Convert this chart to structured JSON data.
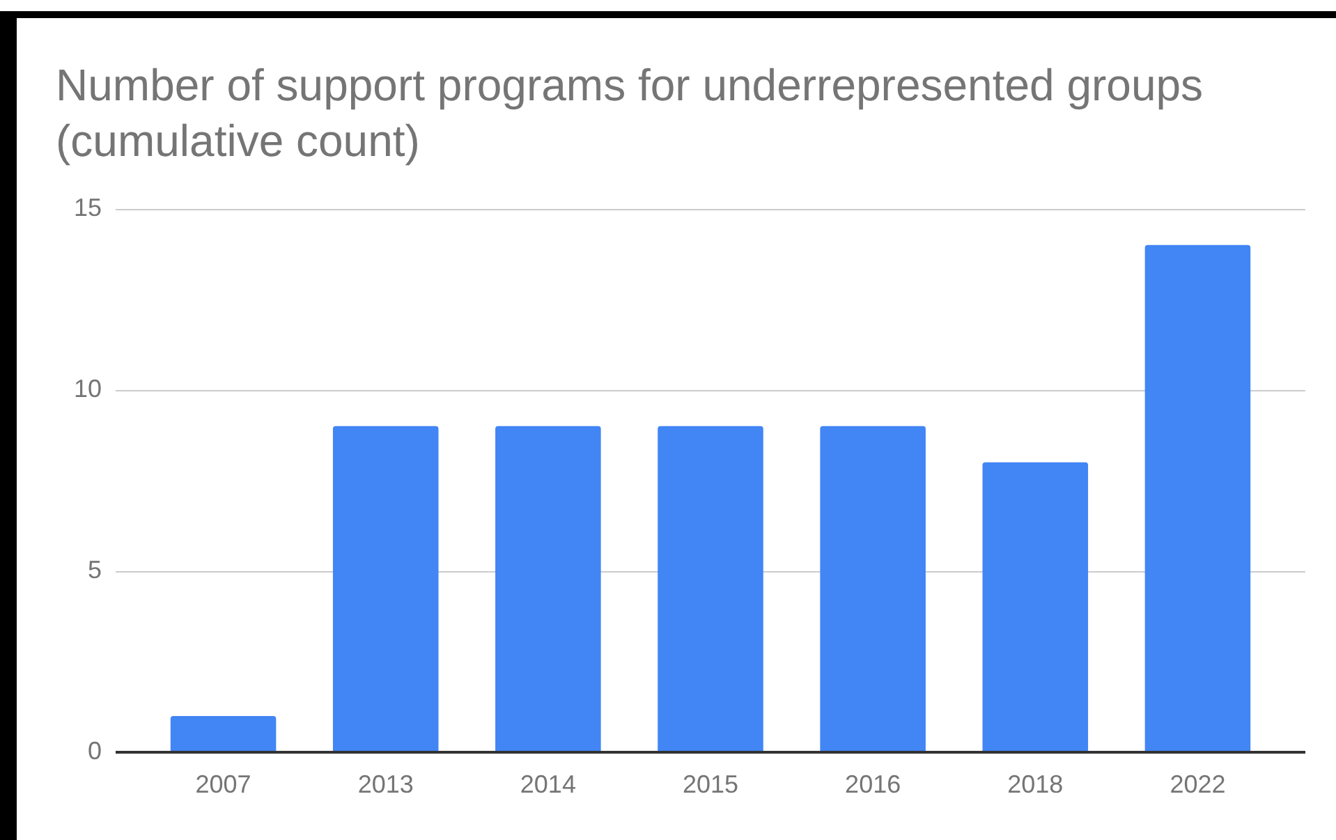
{
  "chart_data": {
    "type": "bar",
    "title": "Number of support programs for underrepresented groups (cumulative count)",
    "categories": [
      "2007",
      "2013",
      "2014",
      "2015",
      "2016",
      "2018",
      "2022"
    ],
    "values": [
      1,
      9,
      9,
      9,
      9,
      8,
      14
    ],
    "color": "#4285f4",
    "ylim": [
      0,
      15
    ],
    "yticks": [
      0,
      5,
      10,
      15
    ],
    "grid": "y"
  }
}
